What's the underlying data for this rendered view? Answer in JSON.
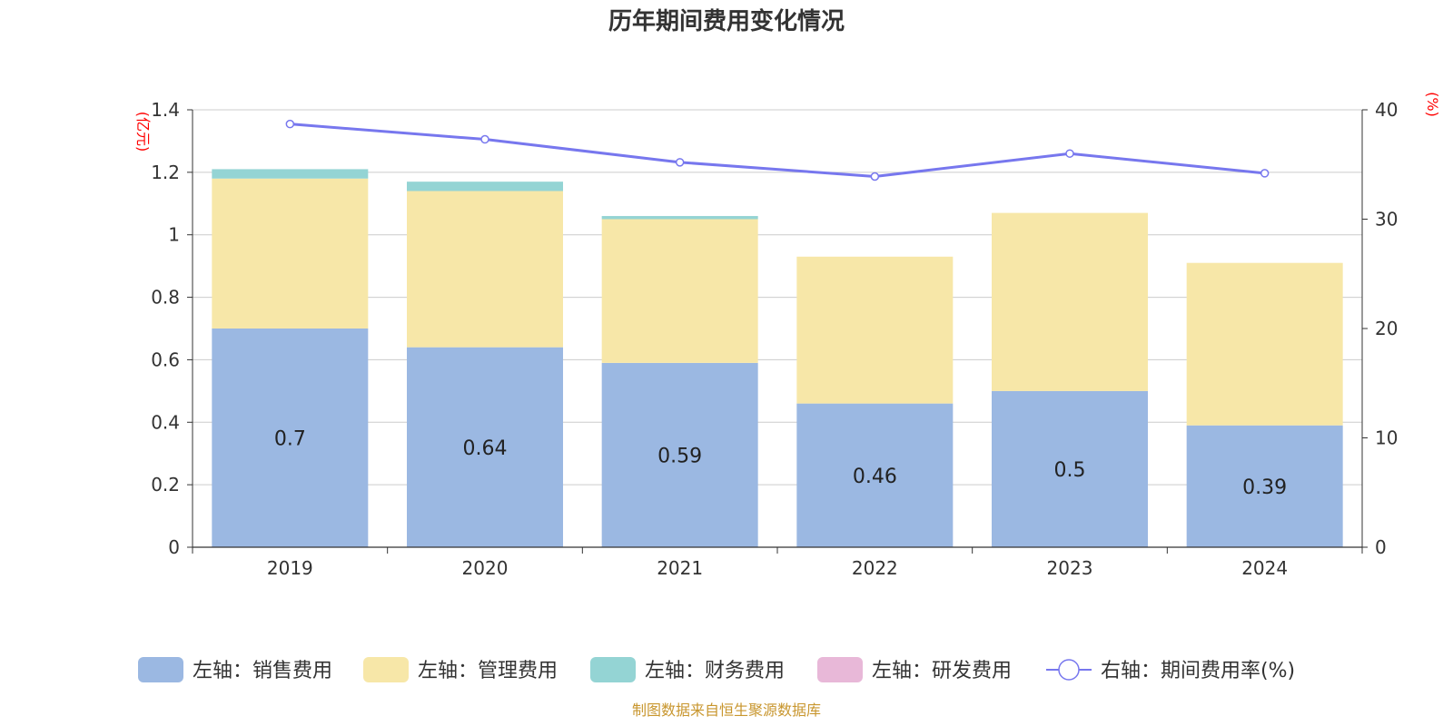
{
  "chart_data": {
    "type": "bar",
    "stacked": true,
    "title": "历年期间费用变化情况",
    "categories": [
      "2019",
      "2020",
      "2021",
      "2022",
      "2023",
      "2024"
    ],
    "left_axis": {
      "unit_label": "(亿元)",
      "ylim": [
        0,
        1.4
      ],
      "ticks": [
        "0",
        "0.2",
        "0.4",
        "0.6",
        "0.8",
        "1",
        "1.2",
        "1.4"
      ]
    },
    "right_axis": {
      "unit_label": "(%)",
      "ylim": [
        0,
        40
      ],
      "ticks": [
        "0",
        "10",
        "20",
        "30",
        "40"
      ]
    },
    "grid": true,
    "legend_position": "bottom",
    "series": [
      {
        "name": "左轴：销售费用",
        "axis": "left",
        "type": "bar",
        "color": "#9bb8e2",
        "values": [
          0.7,
          0.64,
          0.59,
          0.46,
          0.5,
          0.39
        ],
        "show_labels": true
      },
      {
        "name": "左轴：管理费用",
        "axis": "left",
        "type": "bar",
        "color": "#f7e7a8",
        "values": [
          0.48,
          0.5,
          0.46,
          0.47,
          0.57,
          0.52
        ]
      },
      {
        "name": "左轴：财务费用",
        "axis": "left",
        "type": "bar",
        "color": "#94d4d4",
        "values": [
          0.03,
          0.03,
          0.01,
          0,
          0,
          0
        ]
      },
      {
        "name": "左轴：研发费用",
        "axis": "left",
        "type": "bar",
        "color": "#e8b8d8",
        "values": [
          0,
          0,
          0,
          0,
          0,
          0
        ]
      },
      {
        "name": "右轴：期间费用率(%)",
        "axis": "right",
        "type": "line",
        "color": "#7777ee",
        "values": [
          38.7,
          37.3,
          35.2,
          33.9,
          36.0,
          34.2
        ]
      }
    ],
    "source": "制图数据来自恒生聚源数据库"
  }
}
